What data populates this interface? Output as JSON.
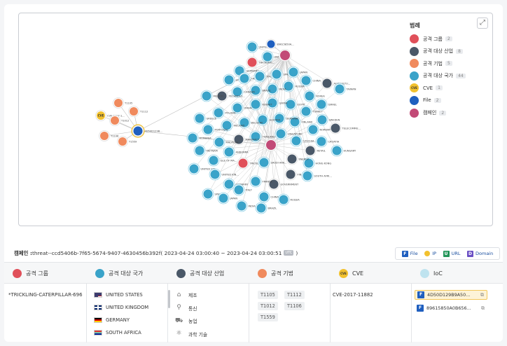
{
  "legend": {
    "title": "범례",
    "items": [
      {
        "label": "공격 그룹",
        "count": "2",
        "color": "#e0505a",
        "icon": "group-icon"
      },
      {
        "label": "공격 대상 산업",
        "count": "8",
        "color": "#4a5868",
        "icon": "industry-icon"
      },
      {
        "label": "공격 기법",
        "count": "5",
        "color": "#f08a5d",
        "icon": "technique-icon"
      },
      {
        "label": "공격 대상 국가",
        "count": "44",
        "color": "#3aa3c9",
        "icon": "country-icon"
      },
      {
        "label": "CVE",
        "count": "1",
        "color": "#f2c12e",
        "icon": "cve-icon",
        "text": "CVE"
      },
      {
        "label": "File",
        "count": "2",
        "color": "#1f5fbf",
        "icon": "file-icon"
      },
      {
        "label": "캠페인",
        "count": "2",
        "color": "#c24a77",
        "icon": "campaign-icon"
      }
    ]
  },
  "graph": {
    "expand_icon": "expand-icon",
    "left_cluster": {
      "file": "4D50D129B...",
      "cve": "CVE-2017-1...",
      "techniques": [
        "T1105",
        "T1112",
        "T1012",
        "T1106",
        "T1559"
      ]
    },
    "countries": [
      "UNITED STA...",
      "UNITED KIN...",
      "GERMANY",
      "SOUTH AFRI...",
      "FRANCE",
      "ITALY",
      "SPAIN",
      "JAPAN",
      "CHINA",
      "RUSSIA",
      "INDIA",
      "BRAZIL",
      "CANADA",
      "MEXICO",
      "KOREA",
      "TAIWAN",
      "ISRAEL",
      "TURKEY",
      "EGYPT",
      "QATAR",
      "KUWAIT",
      "OMAN",
      "POLAND",
      "GREECE",
      "SWEDEN",
      "NORWAY",
      "FINLAND",
      "DENMARK",
      "AUSTRIA",
      "BELGIUM",
      "IRELAND",
      "PORTUGAL",
      "ROMANIA",
      "CROATIA",
      "HUNGARY",
      "CZECHIA",
      "SINGAPORE",
      "THAILAND",
      "MALAYSIA",
      "VIETNAM",
      "ANDORRA",
      "ISLE OF MA...",
      "HONG KONG",
      "SAUDI ARA..."
    ],
    "industries": [
      "TECHNOLO...",
      "AGRICULTU...",
      "TELECOMMU...",
      "RETAIL",
      "MANUFACT...",
      "ENERGY",
      "FINANCE",
      "GOVERNMENT"
    ],
    "groups": [
      "TRICKLING...",
      "TRICKLING..."
    ],
    "campaign_files": [
      "89615850A..."
    ]
  },
  "campaign": {
    "label": "캠페인 : ",
    "id": "threat--ccd5406b-7f65-5674-9407-4630456b392f",
    "range": "( 2023-04-24 03:00:40 ~ 2023-04-24 03:00:51",
    "utc": "UTC",
    "close": " )"
  },
  "ioc_legend": [
    {
      "letter": "F",
      "label": "File",
      "color": "#1f5fbf"
    },
    {
      "letter": "IP",
      "label": "IP",
      "color": "#f2c12e",
      "dot": true
    },
    {
      "letter": "U",
      "label": "URL",
      "color": "#23955a"
    },
    {
      "letter": "D",
      "label": "Domain",
      "color": "#6a4fc4"
    }
  ],
  "table": {
    "headers": [
      {
        "label": "공격 그룹",
        "color": "#e0505a"
      },
      {
        "label": "공격 대상 국가",
        "color": "#3aa3c9"
      },
      {
        "label": "공격 대상 산업",
        "color": "#4a5868"
      },
      {
        "label": "공격 기법",
        "color": "#f08a5d"
      },
      {
        "label": "CVE",
        "color": "#f2c12e",
        "text": "CVE"
      },
      {
        "label": "IoC",
        "color": "#bfe3ef"
      }
    ],
    "group": "*TRICKLING-CATERPILLAR-696",
    "countries": [
      {
        "name": "UNITED STATES",
        "flag": "us-flag"
      },
      {
        "name": "UNITED KINGDOM",
        "flag": "uk-flag"
      },
      {
        "name": "GERMANY",
        "flag": "de-flag"
      },
      {
        "name": "SOUTH AFRICA",
        "flag": "za-flag"
      }
    ],
    "industries": [
      {
        "name": "제조",
        "icon": "factory-icon"
      },
      {
        "name": "통신",
        "icon": "antenna-icon"
      },
      {
        "name": "농업",
        "icon": "tractor-icon"
      },
      {
        "name": "과학 기술",
        "icon": "atom-icon"
      }
    ],
    "techniques": [
      "T1105",
      "T1112",
      "T1012",
      "T1106",
      "T1559"
    ],
    "cve": "CVE-2017-11882",
    "iocs": [
      {
        "type": "F",
        "value": "4D50D129B9A50...",
        "highlight": true
      },
      {
        "type": "F",
        "value": "89615850A0B656...",
        "highlight": false
      }
    ]
  }
}
